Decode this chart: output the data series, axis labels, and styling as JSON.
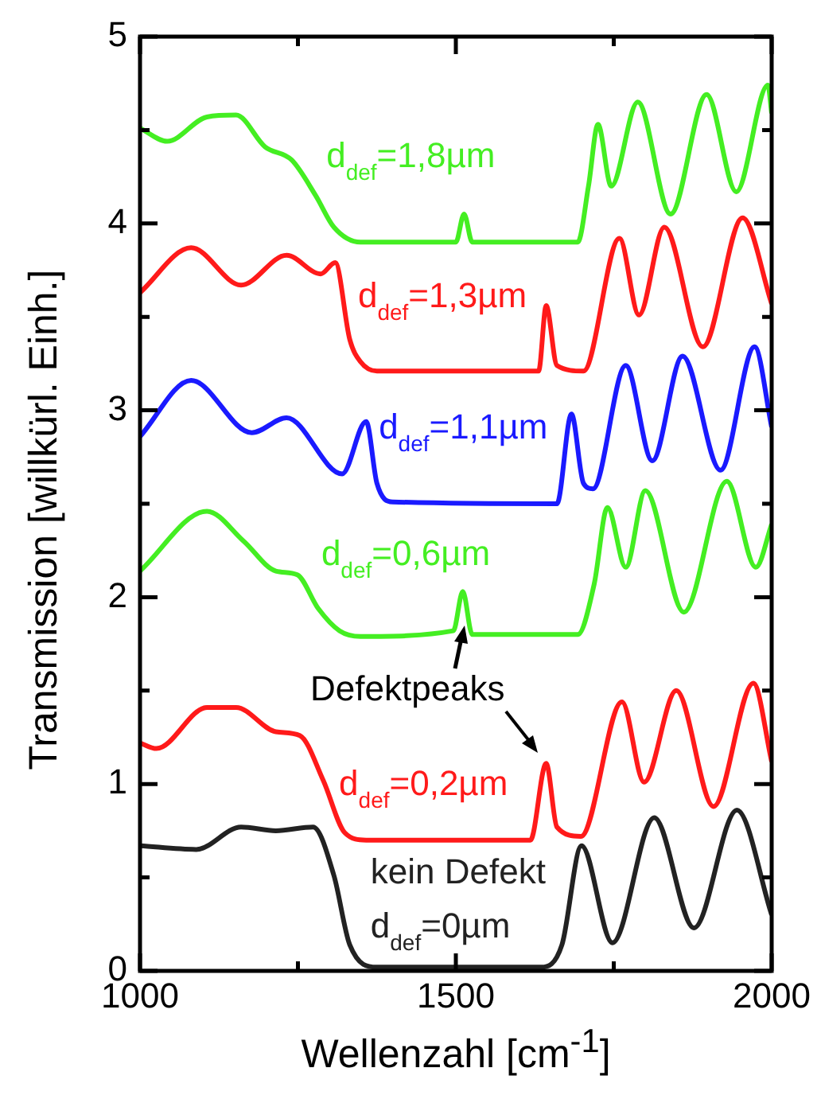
{
  "chart_data": {
    "type": "line",
    "xlabel": "Wellenzahl [cm$^{-1}$]",
    "ylabel": "Transmission [willkürl. Einh.]",
    "xlim": [
      1000,
      2000
    ],
    "ylim": [
      0,
      5
    ],
    "xticks": [
      1000,
      {
        "value": 1250,
        "label": null
      },
      1500,
      {
        "value": 1750,
        "label": null
      },
      2000
    ],
    "yticks": [
      0,
      {
        "value": 0.5,
        "label": null
      },
      1,
      {
        "value": 1.5,
        "label": null
      },
      2,
      {
        "value": 2.5,
        "label": null
      },
      3,
      {
        "value": 3.5,
        "label": null
      },
      4,
      {
        "value": 4.5,
        "label": null
      },
      5
    ],
    "annotations": [
      "Defektpeaks"
    ],
    "series": [
      {
        "name": "kein Defekt d$_{def}$=0µm",
        "color": "#222222",
        "x": [
          1000,
          1089,
          1160,
          1215,
          1274,
          1307,
          1332,
          1375,
          1635,
          1668,
          1699,
          1748,
          1814,
          1877,
          1945,
          2000
        ],
        "values": [
          0.67,
          0.65,
          0.77,
          0.75,
          0.77,
          0.51,
          0.14,
          0.02,
          0.02,
          0.14,
          0.67,
          0.15,
          0.82,
          0.23,
          0.86,
          0.3
        ]
      },
      {
        "name": "d$_{def}$=0,2µm",
        "color": "#ff1a1a",
        "x": [
          1000,
          1026,
          1106,
          1152,
          1215,
          1253,
          1290,
          1324,
          1358,
          1618,
          1643,
          1660,
          1698,
          1763,
          1798,
          1849,
          1908,
          1971,
          2000
        ],
        "values": [
          1.22,
          1.19,
          1.41,
          1.41,
          1.28,
          1.26,
          1.02,
          0.74,
          0.7,
          0.7,
          1.11,
          0.77,
          0.72,
          1.44,
          1.01,
          1.5,
          0.88,
          1.54,
          1.12
        ]
      },
      {
        "name": "d$_{def}$=0,6µm",
        "color": "#44ee22",
        "x": [
          1000,
          1106,
          1164,
          1215,
          1249,
          1282,
          1316,
          1349,
          1496,
          1511,
          1526,
          1693,
          1719,
          1740,
          1769,
          1800,
          1861,
          1929,
          1975,
          2000
        ],
        "values": [
          2.14,
          2.46,
          2.3,
          2.14,
          2.12,
          1.94,
          1.82,
          1.79,
          1.82,
          2.03,
          1.8,
          1.8,
          2.07,
          2.48,
          2.16,
          2.57,
          1.92,
          2.62,
          2.16,
          2.39
        ]
      },
      {
        "name": "d$_{def}$=1,1µm",
        "color": "#1a1aff",
        "x": [
          1000,
          1081,
          1177,
          1232,
          1320,
          1358,
          1375,
          1400,
          1660,
          1683,
          1702,
          1717,
          1769,
          1811,
          1859,
          1919,
          1973,
          2000
        ],
        "values": [
          2.86,
          3.16,
          2.88,
          2.96,
          2.66,
          2.94,
          2.61,
          2.51,
          2.5,
          2.98,
          2.61,
          2.58,
          3.24,
          2.73,
          3.29,
          2.68,
          3.34,
          2.91
        ]
      },
      {
        "name": "d$_{def}$=1,3µm",
        "color": "#ff1a1a",
        "x": [
          1000,
          1081,
          1160,
          1232,
          1286,
          1309,
          1332,
          1349,
          1375,
          1631,
          1643,
          1660,
          1702,
          1759,
          1790,
          1830,
          1891,
          1954,
          2000
        ],
        "values": [
          3.63,
          3.87,
          3.67,
          3.83,
          3.73,
          3.79,
          3.38,
          3.26,
          3.21,
          3.21,
          3.56,
          3.24,
          3.21,
          3.92,
          3.51,
          3.98,
          3.34,
          4.03,
          3.57
        ]
      },
      {
        "name": "d$_{def}$=1,8µm",
        "color": "#44ee22",
        "x": [
          1000,
          1043,
          1106,
          1152,
          1198,
          1240,
          1278,
          1307,
          1349,
          1500,
          1513,
          1526,
          1693,
          1710,
          1725,
          1746,
          1788,
          1840,
          1897,
          1944,
          1994,
          2000
        ],
        "values": [
          4.51,
          4.44,
          4.57,
          4.58,
          4.41,
          4.34,
          4.15,
          3.98,
          3.9,
          3.9,
          4.05,
          3.9,
          3.9,
          4.2,
          4.53,
          4.2,
          4.65,
          4.05,
          4.69,
          4.17,
          4.74,
          4.59
        ]
      }
    ]
  }
}
